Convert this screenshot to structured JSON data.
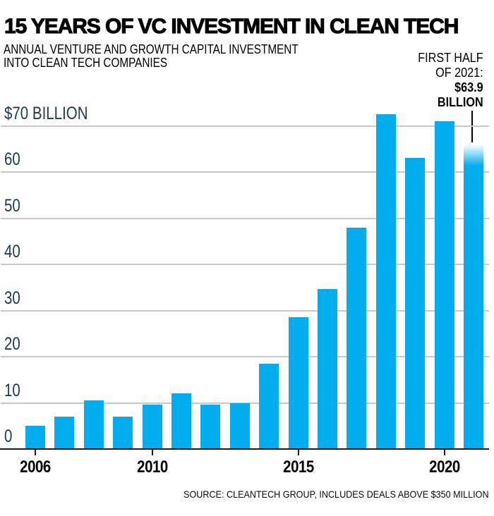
{
  "header": {
    "title": "15 YEARS OF VC INVESTMENT IN CLEAN TECH",
    "subtitle_lines": [
      "ANNUAL VENTURE AND GROWTH CAPITAL INVESTMENT",
      "INTO CLEAN TECH COMPANIES"
    ]
  },
  "annotation": {
    "lines": [
      "FIRST HALF",
      "OF 2021:",
      "$63.9",
      "BILLION"
    ]
  },
  "source": "SOURCE: CLEANTECH GROUP, INCLUDES DEALS ABOVE $350 MILLION",
  "colors": {
    "bar": "#00aeef",
    "gridline": "#c9c9c9",
    "axis": "#1a1a1a",
    "y_label": "#1b3a4f",
    "text": "#000000"
  },
  "chart_data": {
    "type": "bar",
    "title": "15 YEARS OF VC INVESTMENT IN CLEAN TECH",
    "subtitle": "ANNUAL VENTURE AND GROWTH CAPITAL INVESTMENT INTO CLEAN TECH COMPANIES",
    "unit": "USD billions",
    "categories": [
      "2006",
      "2007",
      "2008",
      "2009",
      "2010",
      "2011",
      "2012",
      "2013",
      "2014",
      "2015",
      "2016",
      "2017",
      "2018",
      "2019",
      "2020",
      "2021"
    ],
    "values": [
      5,
      7,
      10.5,
      7,
      9.7,
      12,
      9.6,
      10,
      18.5,
      28.5,
      34.7,
      48,
      72.5,
      63,
      71,
      63.9
    ],
    "partial_year": {
      "index": 15,
      "note": "FIRST HALF OF 2021: $63.9 BILLION"
    },
    "ylim": [
      0,
      70
    ],
    "grid": true,
    "legend": false,
    "yticks": [
      {
        "value": 70,
        "label": "$70 BILLION"
      },
      {
        "value": 60,
        "label": "60"
      },
      {
        "value": 50,
        "label": "50"
      },
      {
        "value": 40,
        "label": "40"
      },
      {
        "value": 30,
        "label": "30"
      },
      {
        "value": 20,
        "label": "20"
      },
      {
        "value": 10,
        "label": "10"
      },
      {
        "value": 0,
        "label": "0"
      }
    ],
    "xticks": [
      {
        "bar_index": 0,
        "label": "2006"
      },
      {
        "bar_index": 4,
        "label": "2010"
      },
      {
        "bar_index": 9,
        "label": "2015"
      },
      {
        "bar_index": 14,
        "label": "2020"
      }
    ]
  }
}
